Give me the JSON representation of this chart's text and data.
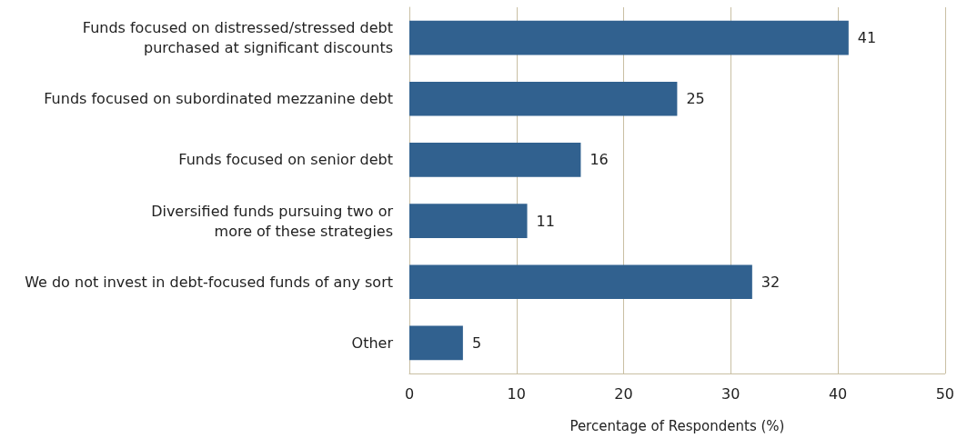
{
  "chart_data": {
    "type": "bar",
    "orientation": "horizontal",
    "xlabel": "Percentage of Respondents (%)",
    "categories": [
      "Funds focused on distressed/stressed debt\npurchased at significant discounts",
      "Funds focused on subordinated mezzanine debt",
      "Funds focused on senior debt",
      "Diversified funds pursuing two or\nmore of these strategies",
      "We do not invest in debt-focused funds of any sort",
      "Other"
    ],
    "values": [
      41,
      25,
      16,
      11,
      32,
      5
    ],
    "color": "#31618f",
    "xlim": [
      0,
      50
    ],
    "xticks": [
      0,
      10,
      20,
      30,
      40,
      50
    ],
    "grid": "x",
    "data_labels": true
  }
}
